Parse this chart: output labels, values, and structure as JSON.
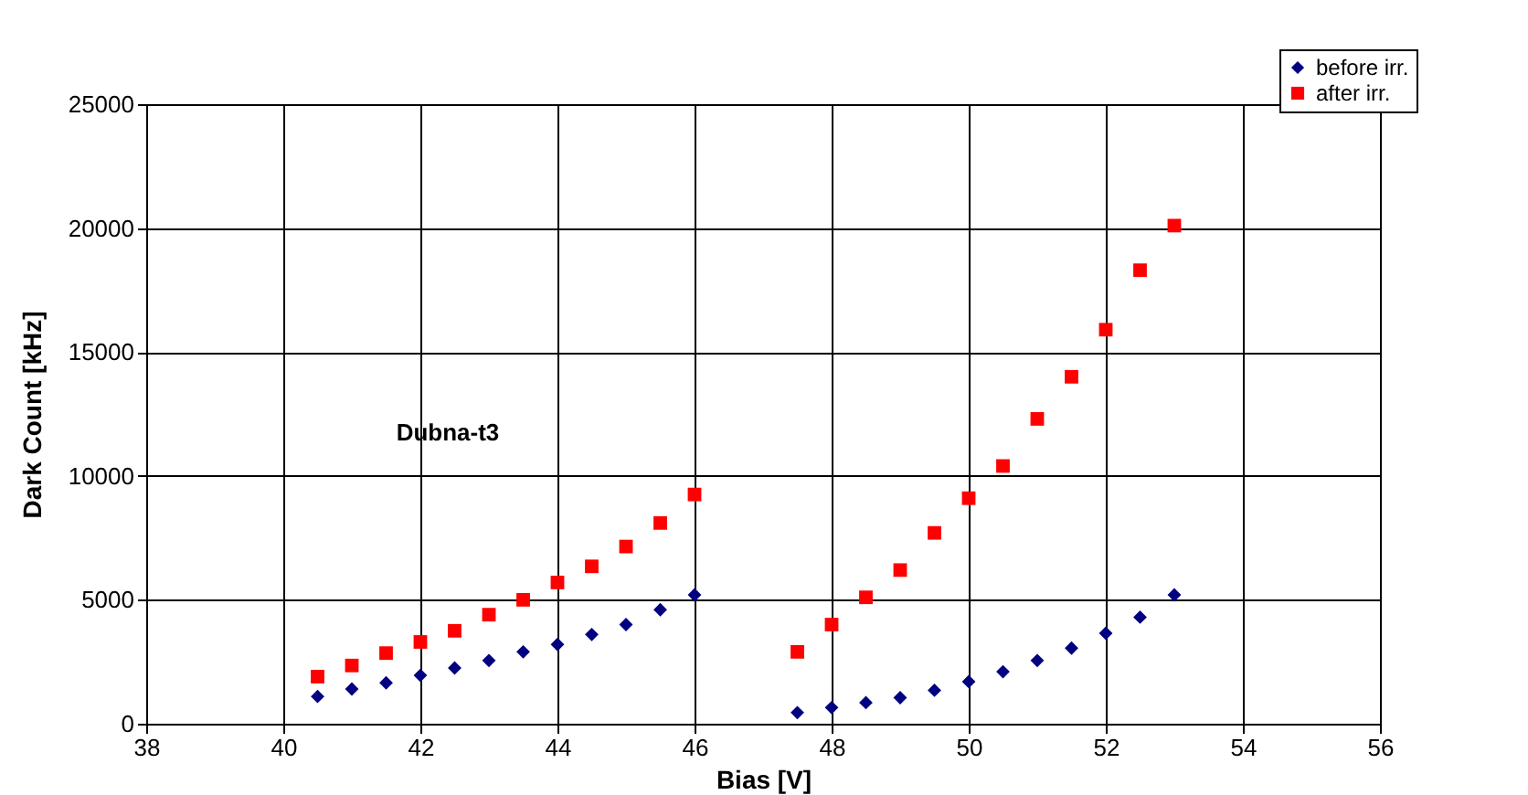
{
  "chart_data": {
    "type": "scatter",
    "xlabel": "Bias [V]",
    "ylabel": "Dark Count [kHz]",
    "xlim": [
      38,
      56
    ],
    "xticks": [
      38,
      40,
      42,
      44,
      46,
      48,
      50,
      52,
      54,
      56
    ],
    "ylim": [
      0,
      25000
    ],
    "yticks": [
      0,
      5000,
      10000,
      15000,
      20000,
      25000
    ],
    "grid": true,
    "legend": "top right",
    "series": [
      {
        "name": "before irr.",
        "color": "#000080",
        "marker": "diamond",
        "x": [
          40.5,
          41,
          41.5,
          42,
          42.5,
          43,
          43.5,
          44,
          44.5,
          45,
          45.5,
          46,
          47.5,
          48,
          48.5,
          49,
          49.5,
          50,
          50.5,
          51,
          51.5,
          52,
          52.5,
          53
        ],
        "values": [
          1100,
          1400,
          1650,
          1950,
          2250,
          2550,
          2900,
          3200,
          3600,
          4000,
          4600,
          5200,
          450,
          650,
          850,
          1050,
          1350,
          1700,
          2100,
          2550,
          3050,
          3650,
          4300,
          5200
        ]
      },
      {
        "name": "after irr.",
        "color": "#ff0000",
        "marker": "square",
        "x": [
          40.5,
          41,
          41.5,
          42,
          42.5,
          43,
          43.5,
          44,
          44.5,
          45,
          45.5,
          46,
          47.5,
          48,
          48.5,
          49,
          49.5,
          50,
          50.5,
          51,
          51.5,
          52,
          52.5,
          53
        ],
        "values": [
          1900,
          2350,
          2850,
          3300,
          3750,
          4400,
          5000,
          5700,
          6350,
          7150,
          8100,
          9250,
          2900,
          4000,
          5100,
          6200,
          7700,
          9100,
          10400,
          12300,
          14000,
          15900,
          18300,
          20100
        ]
      }
    ],
    "annotations": [
      "Dubna-t3"
    ]
  }
}
